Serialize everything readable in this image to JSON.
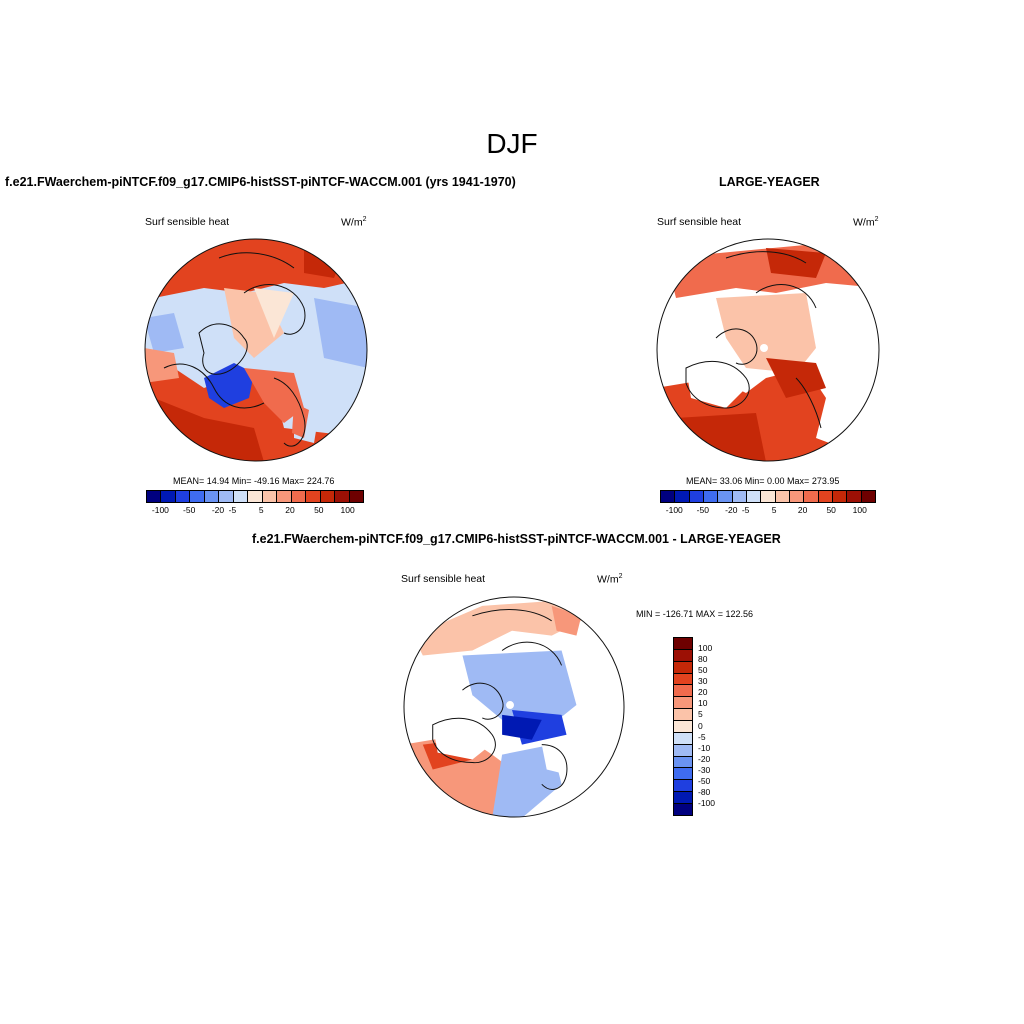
{
  "title": "DJF",
  "palette": [
    "#00007f",
    "#0019b3",
    "#1f3fe0",
    "#3f6cf0",
    "#6a93f2",
    "#9fbaf4",
    "#cfe0f8",
    "#fbe6d6",
    "#fbc3a9",
    "#f7977a",
    "#f06b4d",
    "#e2431f",
    "#c52808",
    "#9c1005",
    "#6e0000"
  ],
  "colors": {
    "ice": "#ffffff",
    "coast": "#111111",
    "ocean_warm": "#e2431f"
  },
  "panels": {
    "left": {
      "title": "f.e21.FWaerchem-piNTCF.f09_g17.CMIP6-histSST-piNTCF-WACCM.001 (yrs 1941-1970)",
      "variable": "Surf sensible heat",
      "units": "W/m",
      "units_exp": "2",
      "stats": "MEAN=  14.94  Min= -49.16  Max= 224.76",
      "ticks": [
        "-100",
        "-50",
        "-20",
        "-5",
        "5",
        "20",
        "50",
        "100"
      ]
    },
    "right": {
      "title": "LARGE-YEAGER",
      "variable": "Surf sensible heat",
      "units": "W/m",
      "units_exp": "2",
      "stats": "MEAN=  33.06  Min=    0.00  Max= 273.95",
      "ticks": [
        "-100",
        "-50",
        "-20",
        "-5",
        "5",
        "20",
        "50",
        "100"
      ]
    },
    "diff": {
      "title": "f.e21.FWaerchem-piNTCF.f09_g17.CMIP6-histSST-piNTCF-WACCM.001 - LARGE-YEAGER",
      "variable": "Surf sensible heat",
      "units": "W/m",
      "units_exp": "2",
      "minmax": "MIN = -126.71  MAX = 122.56",
      "levels": [
        "100",
        "80",
        "50",
        "30",
        "20",
        "10",
        "5",
        "0",
        "-5",
        "-10",
        "-20",
        "-30",
        "-50",
        "-80",
        "-100"
      ]
    }
  }
}
